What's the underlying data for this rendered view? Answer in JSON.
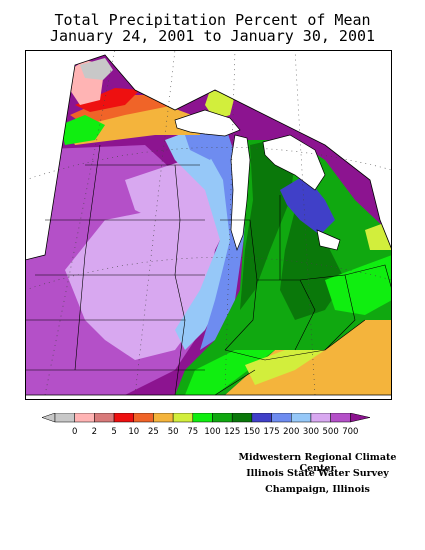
{
  "title": {
    "line1": "Total Precipitation Percent of Mean",
    "line2": "January 24, 2001 to January 30, 2001"
  },
  "legend": {
    "bins": [
      {
        "label": "0",
        "color": "#c8c8c8"
      },
      {
        "label": "2",
        "color": "#ffb4b4"
      },
      {
        "label": "5",
        "color": "#d87a7a"
      },
      {
        "label": "10",
        "color": "#ee1010"
      },
      {
        "label": "25",
        "color": "#f06428"
      },
      {
        "label": "50",
        "color": "#f4b43c"
      },
      {
        "label": "75",
        "color": "#d2ee3c"
      },
      {
        "label": "100",
        "color": "#10ee10"
      },
      {
        "label": "125",
        "color": "#10a810"
      },
      {
        "label": "150",
        "color": "#0a780a"
      },
      {
        "label": "175",
        "color": "#4040c8"
      },
      {
        "label": "200",
        "color": "#6e8cf0"
      },
      {
        "label": "300",
        "color": "#96c8f8"
      },
      {
        "label": "500",
        "color": "#d8a8f0"
      },
      {
        "label": "700",
        "color": "#b450c8"
      },
      {
        "label": "",
        "color": "#8c1490"
      }
    ]
  },
  "credits": {
    "line1": "Midwestern Regional Climate Center",
    "line2": "Illinois State Water Survey",
    "line3": "Champaign, Illinois"
  }
}
